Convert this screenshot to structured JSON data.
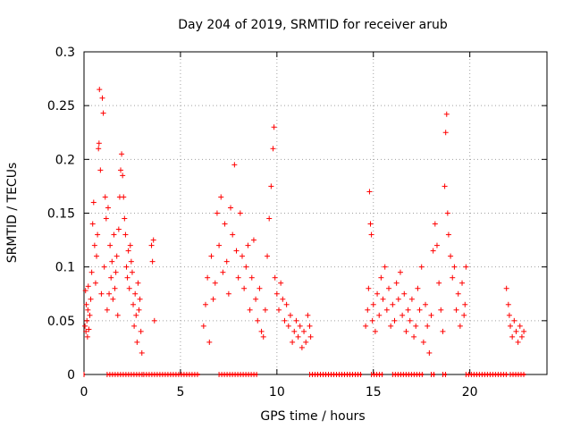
{
  "chart_data": {
    "type": "scatter",
    "title": "Day 204 of 2019, SRMTID for receiver arub",
    "xlabel": "GPS time / hours",
    "ylabel": "SRMTID / TECUs",
    "xlim": [
      0,
      24
    ],
    "ylim": [
      0,
      0.3
    ],
    "grid": true,
    "marker": "+",
    "x_ticks": [
      0,
      5,
      10,
      15,
      20
    ],
    "x_tick_labels": [
      "0",
      "5",
      "10",
      "15",
      "20"
    ],
    "y_ticks": [
      0,
      0.05,
      0.1,
      0.15,
      0.2,
      0.25,
      0.3
    ],
    "y_tick_labels": [
      "0",
      "0.05",
      "0.1",
      "0.15",
      "0.2",
      "0.25",
      "0.3"
    ],
    "series": [
      {
        "name": "SRMTID",
        "color": "#ff0000",
        "points": [
          [
            0.05,
            0.045
          ],
          [
            0.08,
            0.078
          ],
          [
            0.1,
            0.04
          ],
          [
            0.12,
            0.065
          ],
          [
            0.15,
            0.05
          ],
          [
            0.18,
            0.035
          ],
          [
            0.2,
            0.06
          ],
          [
            0.22,
            0.082
          ],
          [
            0.25,
            0.042
          ],
          [
            0.3,
            0.055
          ],
          [
            0.35,
            0.07
          ],
          [
            0.4,
            0.095
          ],
          [
            0.45,
            0.14
          ],
          [
            0.5,
            0.16
          ],
          [
            0.55,
            0.12
          ],
          [
            0.6,
            0.085
          ],
          [
            0.65,
            0.11
          ],
          [
            0.7,
            0.13
          ],
          [
            0.75,
            0.21
          ],
          [
            0.78,
            0.215
          ],
          [
            0.8,
            0.265
          ],
          [
            0.85,
            0.19
          ],
          [
            0.9,
            0.075
          ],
          [
            0.95,
            0.257
          ],
          [
            1.0,
            0.243
          ],
          [
            1.05,
            0.1
          ],
          [
            1.1,
            0.165
          ],
          [
            1.15,
            0.145
          ],
          [
            1.2,
            0.06
          ],
          [
            1.25,
            0.155
          ],
          [
            1.3,
            0.075
          ],
          [
            1.35,
            0.12
          ],
          [
            1.4,
            0.09
          ],
          [
            1.45,
            0.105
          ],
          [
            1.5,
            0.07
          ],
          [
            1.55,
            0.13
          ],
          [
            1.6,
            0.08
          ],
          [
            1.65,
            0.095
          ],
          [
            1.7,
            0.11
          ],
          [
            1.75,
            0.055
          ],
          [
            1.8,
            0.135
          ],
          [
            1.85,
            0.165
          ],
          [
            1.9,
            0.19
          ],
          [
            1.95,
            0.205
          ],
          [
            2.0,
            0.185
          ],
          [
            2.05,
            0.165
          ],
          [
            2.1,
            0.145
          ],
          [
            2.15,
            0.13
          ],
          [
            2.2,
            0.1
          ],
          [
            2.25,
            0.09
          ],
          [
            2.3,
            0.115
          ],
          [
            2.35,
            0.08
          ],
          [
            2.4,
            0.12
          ],
          [
            2.45,
            0.105
          ],
          [
            2.5,
            0.095
          ],
          [
            2.55,
            0.065
          ],
          [
            2.6,
            0.045
          ],
          [
            2.65,
            0.075
          ],
          [
            2.7,
            0.055
          ],
          [
            2.75,
            0.03
          ],
          [
            2.8,
            0.085
          ],
          [
            2.85,
            0.06
          ],
          [
            2.9,
            0.07
          ],
          [
            2.95,
            0.04
          ],
          [
            3.0,
            0.02
          ],
          [
            3.5,
            0.12
          ],
          [
            3.55,
            0.105
          ],
          [
            3.6,
            0.125
          ],
          [
            3.65,
            0.05
          ],
          [
            6.2,
            0.045
          ],
          [
            6.3,
            0.065
          ],
          [
            6.4,
            0.09
          ],
          [
            6.5,
            0.03
          ],
          [
            6.6,
            0.11
          ],
          [
            6.7,
            0.07
          ],
          [
            6.8,
            0.085
          ],
          [
            6.9,
            0.15
          ],
          [
            7.0,
            0.12
          ],
          [
            7.1,
            0.165
          ],
          [
            7.2,
            0.095
          ],
          [
            7.3,
            0.14
          ],
          [
            7.4,
            0.105
          ],
          [
            7.5,
            0.075
          ],
          [
            7.6,
            0.155
          ],
          [
            7.7,
            0.13
          ],
          [
            7.8,
            0.195
          ],
          [
            7.9,
            0.115
          ],
          [
            8.0,
            0.09
          ],
          [
            8.1,
            0.15
          ],
          [
            8.2,
            0.11
          ],
          [
            8.3,
            0.08
          ],
          [
            8.4,
            0.1
          ],
          [
            8.5,
            0.12
          ],
          [
            8.6,
            0.06
          ],
          [
            8.7,
            0.09
          ],
          [
            8.8,
            0.125
          ],
          [
            8.9,
            0.07
          ],
          [
            9.0,
            0.05
          ],
          [
            9.1,
            0.08
          ],
          [
            9.2,
            0.04
          ],
          [
            9.3,
            0.035
          ],
          [
            9.4,
            0.06
          ],
          [
            9.5,
            0.11
          ],
          [
            9.6,
            0.145
          ],
          [
            9.7,
            0.175
          ],
          [
            9.8,
            0.21
          ],
          [
            9.85,
            0.23
          ],
          [
            9.9,
            0.09
          ],
          [
            10.0,
            0.075
          ],
          [
            10.1,
            0.06
          ],
          [
            10.2,
            0.085
          ],
          [
            10.3,
            0.07
          ],
          [
            10.4,
            0.05
          ],
          [
            10.5,
            0.065
          ],
          [
            10.6,
            0.045
          ],
          [
            10.7,
            0.055
          ],
          [
            10.8,
            0.03
          ],
          [
            10.9,
            0.04
          ],
          [
            11.0,
            0.05
          ],
          [
            11.1,
            0.035
          ],
          [
            11.2,
            0.045
          ],
          [
            11.3,
            0.025
          ],
          [
            11.4,
            0.04
          ],
          [
            11.5,
            0.03
          ],
          [
            11.6,
            0.055
          ],
          [
            11.7,
            0.045
          ],
          [
            11.75,
            0.035
          ],
          [
            14.6,
            0.045
          ],
          [
            14.7,
            0.06
          ],
          [
            14.75,
            0.08
          ],
          [
            14.8,
            0.17
          ],
          [
            14.85,
            0.14
          ],
          [
            14.9,
            0.13
          ],
          [
            14.95,
            0.05
          ],
          [
            15.0,
            0.065
          ],
          [
            15.1,
            0.04
          ],
          [
            15.2,
            0.075
          ],
          [
            15.3,
            0.055
          ],
          [
            15.4,
            0.09
          ],
          [
            15.5,
            0.07
          ],
          [
            15.6,
            0.1
          ],
          [
            15.7,
            0.06
          ],
          [
            15.8,
            0.08
          ],
          [
            15.9,
            0.045
          ],
          [
            16.0,
            0.065
          ],
          [
            16.1,
            0.05
          ],
          [
            16.2,
            0.085
          ],
          [
            16.3,
            0.07
          ],
          [
            16.4,
            0.095
          ],
          [
            16.5,
            0.055
          ],
          [
            16.6,
            0.075
          ],
          [
            16.7,
            0.04
          ],
          [
            16.8,
            0.06
          ],
          [
            16.9,
            0.05
          ],
          [
            17.0,
            0.07
          ],
          [
            17.1,
            0.035
          ],
          [
            17.2,
            0.045
          ],
          [
            17.3,
            0.08
          ],
          [
            17.4,
            0.06
          ],
          [
            17.5,
            0.1
          ],
          [
            17.6,
            0.03
          ],
          [
            17.7,
            0.065
          ],
          [
            17.8,
            0.045
          ],
          [
            17.9,
            0.02
          ],
          [
            18.0,
            0.055
          ],
          [
            18.1,
            0.115
          ],
          [
            18.2,
            0.14
          ],
          [
            18.3,
            0.12
          ],
          [
            18.4,
            0.085
          ],
          [
            18.5,
            0.06
          ],
          [
            18.6,
            0.04
          ],
          [
            18.7,
            0.175
          ],
          [
            18.75,
            0.225
          ],
          [
            18.8,
            0.242
          ],
          [
            18.85,
            0.15
          ],
          [
            18.9,
            0.13
          ],
          [
            19.0,
            0.11
          ],
          [
            19.1,
            0.09
          ],
          [
            19.2,
            0.1
          ],
          [
            19.3,
            0.06
          ],
          [
            19.4,
            0.075
          ],
          [
            19.5,
            0.045
          ],
          [
            19.6,
            0.085
          ],
          [
            19.7,
            0.055
          ],
          [
            19.75,
            0.065
          ],
          [
            19.8,
            0.1
          ],
          [
            21.9,
            0.08
          ],
          [
            22.0,
            0.065
          ],
          [
            22.05,
            0.055
          ],
          [
            22.1,
            0.045
          ],
          [
            22.2,
            0.035
          ],
          [
            22.3,
            0.05
          ],
          [
            22.4,
            0.04
          ],
          [
            22.5,
            0.03
          ],
          [
            22.6,
            0.045
          ],
          [
            22.7,
            0.035
          ],
          [
            22.8,
            0.04
          ]
        ]
      }
    ],
    "zero_segments": [
      [
        0.0,
        0.05
      ],
      [
        1.2,
        3.05
      ],
      [
        3.1,
        6.0
      ],
      [
        7.0,
        9.0
      ],
      [
        11.7,
        14.4
      ],
      [
        14.9,
        15.5
      ],
      [
        16.0,
        17.6
      ],
      [
        18.0,
        18.2
      ],
      [
        18.6,
        18.8
      ],
      [
        19.8,
        22.0
      ],
      [
        22.1,
        22.9
      ]
    ]
  }
}
